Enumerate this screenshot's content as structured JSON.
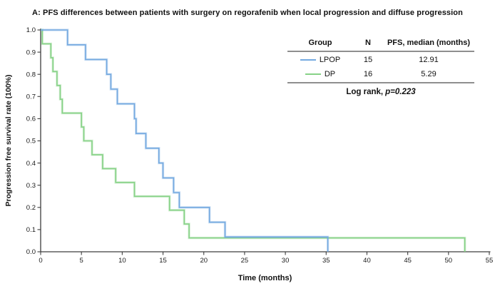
{
  "title": "A: PFS differences between patients with surgery on regorafenib when local progression and diffuse progression",
  "legend_table": {
    "headers": {
      "group": "Group",
      "n": "N",
      "median": "PFS, median (months)"
    },
    "rows": [
      {
        "group": "LPOP",
        "n": "15",
        "median": "12.91"
      },
      {
        "group": "DP",
        "n": "16",
        "median": "5.29"
      }
    ],
    "footer_prefix": "Log rank,",
    "footer_stat": "p=0.223"
  },
  "chart_data": {
    "type": "line",
    "subtype": "kaplan-meier-step",
    "title": "A: PFS differences between patients with surgery on regorafenib when local progression and diffuse progression",
    "xlabel": "Time (months)",
    "ylabel": "Progression free survival rate (100%)",
    "xlim": [
      0,
      55
    ],
    "ylim": [
      0.0,
      1.0
    ],
    "x_ticks": [
      0,
      5,
      10,
      15,
      20,
      25,
      30,
      35,
      40,
      45,
      50,
      55
    ],
    "y_ticks": [
      "0.0",
      "0.1",
      "0.2",
      "0.3",
      "0.4",
      "0.5",
      "0.6",
      "0.7",
      "0.8",
      "0.9",
      "1.0"
    ],
    "grid": false,
    "legend_position": "top-right-table",
    "axis_color": "#3d3d3d",
    "series": [
      {
        "name": "DP",
        "n": 16,
        "median_months": 5.29,
        "color": "#87d287",
        "start": {
          "t": 0,
          "s": 1.0
        },
        "steps": [
          {
            "t": 0.2,
            "s": 0.9375
          },
          {
            "t": 1.25,
            "s": 0.875
          },
          {
            "t": 1.5,
            "s": 0.8125
          },
          {
            "t": 2.0,
            "s": 0.75
          },
          {
            "t": 2.4,
            "s": 0.6875
          },
          {
            "t": 2.65,
            "s": 0.625
          },
          {
            "t": 5.0,
            "s": 0.5625
          },
          {
            "t": 5.29,
            "s": 0.5
          },
          {
            "t": 6.3,
            "s": 0.4375
          },
          {
            "t": 7.6,
            "s": 0.375
          },
          {
            "t": 9.2,
            "s": 0.3125
          },
          {
            "t": 11.5,
            "s": 0.25
          },
          {
            "t": 15.8,
            "s": 0.1875
          },
          {
            "t": 17.6,
            "s": 0.125
          },
          {
            "t": 18.2,
            "s": 0.0625
          },
          {
            "t": 52.0,
            "s": 0.0
          }
        ]
      },
      {
        "name": "LPOP",
        "n": 15,
        "median_months": 12.91,
        "color": "#74a9e0",
        "start": {
          "t": 0,
          "s": 1.0
        },
        "steps": [
          {
            "t": 3.3,
            "s": 0.933
          },
          {
            "t": 5.5,
            "s": 0.867
          },
          {
            "t": 8.1,
            "s": 0.8
          },
          {
            "t": 8.6,
            "s": 0.733
          },
          {
            "t": 9.4,
            "s": 0.667
          },
          {
            "t": 11.5,
            "s": 0.6
          },
          {
            "t": 11.7,
            "s": 0.533
          },
          {
            "t": 12.9,
            "s": 0.467
          },
          {
            "t": 14.5,
            "s": 0.4
          },
          {
            "t": 15.0,
            "s": 0.333
          },
          {
            "t": 16.3,
            "s": 0.267
          },
          {
            "t": 17.0,
            "s": 0.2
          },
          {
            "t": 20.7,
            "s": 0.133
          },
          {
            "t": 22.6,
            "s": 0.067
          },
          {
            "t": 35.2,
            "s": 0.0
          }
        ]
      }
    ],
    "stat_test": {
      "label": "Log rank,",
      "p_value": "p=0.223"
    }
  }
}
